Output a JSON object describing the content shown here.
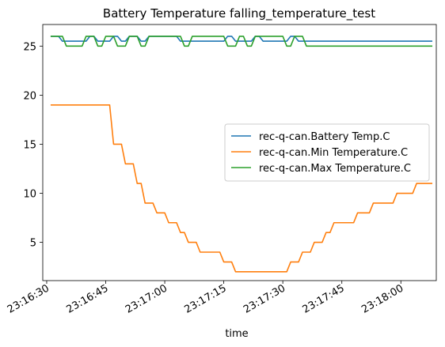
{
  "chart_data": {
    "type": "line",
    "title": "Battery Temperature falling_temperature_test",
    "xlabel": "time",
    "ylabel": "",
    "x_axis_type": "time",
    "xlim": [
      "23:16:29",
      "23:18:09"
    ],
    "ylim": [
      1.1,
      27.2
    ],
    "x_ticks": [
      "23:16:30",
      "23:16:45",
      "23:17:00",
      "23:17:15",
      "23:17:30",
      "23:17:45",
      "23:18:00"
    ],
    "y_ticks": [
      5,
      10,
      15,
      20,
      25
    ],
    "grid": false,
    "legend_position": "center-right",
    "series": [
      {
        "name": "rec-q-can.Battery Temp.C",
        "color": "#1f77b4",
        "points": [
          [
            "23:16:31",
            26
          ],
          [
            "23:16:33",
            26
          ],
          [
            "23:16:34",
            25.5
          ],
          [
            "23:16:35",
            25.5
          ],
          [
            "23:16:37",
            25.5
          ],
          [
            "23:16:38",
            25.5
          ],
          [
            "23:16:39",
            25.5
          ],
          [
            "23:16:40",
            25.5
          ],
          [
            "23:16:41",
            26
          ],
          [
            "23:16:42",
            26
          ],
          [
            "23:16:43",
            25.5
          ],
          [
            "23:16:46",
            25.5
          ],
          [
            "23:16:47",
            26
          ],
          [
            "23:16:48",
            26
          ],
          [
            "23:16:49",
            25.5
          ],
          [
            "23:16:50",
            25.5
          ],
          [
            "23:16:51",
            26
          ],
          [
            "23:16:53",
            26
          ],
          [
            "23:16:54",
            25.5
          ],
          [
            "23:16:55",
            25.5
          ],
          [
            "23:16:56",
            26
          ],
          [
            "23:17:03",
            26
          ],
          [
            "23:17:04",
            25.5
          ],
          [
            "23:17:15",
            25.5
          ],
          [
            "23:17:16",
            26
          ],
          [
            "23:17:17",
            26
          ],
          [
            "23:17:18",
            25.5
          ],
          [
            "23:17:22",
            25.5
          ],
          [
            "23:17:23",
            26
          ],
          [
            "23:17:24",
            26
          ],
          [
            "23:17:25",
            25.5
          ],
          [
            "23:17:31",
            25.5
          ],
          [
            "23:17:32",
            26
          ],
          [
            "23:17:33",
            26
          ],
          [
            "23:17:34",
            25.5
          ],
          [
            "23:18:08",
            25.5
          ]
        ]
      },
      {
        "name": "rec-q-can.Min Temperature.C",
        "color": "#ff7f0e",
        "points": [
          [
            "23:16:31",
            19
          ],
          [
            "23:16:46",
            19
          ],
          [
            "23:16:47",
            15
          ],
          [
            "23:16:48",
            15
          ],
          [
            "23:16:49",
            15
          ],
          [
            "23:16:50",
            13
          ],
          [
            "23:16:51",
            13
          ],
          [
            "23:16:52",
            13
          ],
          [
            "23:16:53",
            11
          ],
          [
            "23:16:54",
            11
          ],
          [
            "23:16:55",
            9
          ],
          [
            "23:16:57",
            9
          ],
          [
            "23:16:58",
            8
          ],
          [
            "23:17:00",
            8
          ],
          [
            "23:17:01",
            7
          ],
          [
            "23:17:03",
            7
          ],
          [
            "23:17:04",
            6
          ],
          [
            "23:17:05",
            6
          ],
          [
            "23:17:06",
            5
          ],
          [
            "23:17:08",
            5
          ],
          [
            "23:17:09",
            4
          ],
          [
            "23:17:14",
            4
          ],
          [
            "23:17:15",
            3
          ],
          [
            "23:17:17",
            3
          ],
          [
            "23:17:18",
            2
          ],
          [
            "23:17:31",
            2
          ],
          [
            "23:17:32",
            3
          ],
          [
            "23:17:34",
            3
          ],
          [
            "23:17:35",
            4
          ],
          [
            "23:17:37",
            4
          ],
          [
            "23:17:38",
            5
          ],
          [
            "23:17:40",
            5
          ],
          [
            "23:17:41",
            6
          ],
          [
            "23:17:42",
            6
          ],
          [
            "23:17:43",
            7
          ],
          [
            "23:17:48",
            7
          ],
          [
            "23:17:49",
            8
          ],
          [
            "23:17:52",
            8
          ],
          [
            "23:17:53",
            9
          ],
          [
            "23:17:58",
            9
          ],
          [
            "23:17:59",
            10
          ],
          [
            "23:18:03",
            10
          ],
          [
            "23:18:04",
            11
          ],
          [
            "23:18:08",
            11
          ]
        ]
      },
      {
        "name": "rec-q-can.Max Temperature.C",
        "color": "#2ca02c",
        "points": [
          [
            "23:16:31",
            26
          ],
          [
            "23:16:34",
            26
          ],
          [
            "23:16:35",
            25
          ],
          [
            "23:16:39",
            25
          ],
          [
            "23:16:40",
            26
          ],
          [
            "23:16:42",
            26
          ],
          [
            "23:16:43",
            25
          ],
          [
            "23:16:44",
            25
          ],
          [
            "23:16:45",
            26
          ],
          [
            "23:16:47",
            26
          ],
          [
            "23:16:48",
            25
          ],
          [
            "23:16:50",
            25
          ],
          [
            "23:16:51",
            26
          ],
          [
            "23:16:53",
            26
          ],
          [
            "23:16:54",
            25
          ],
          [
            "23:16:55",
            25
          ],
          [
            "23:16:56",
            26
          ],
          [
            "23:17:04",
            26
          ],
          [
            "23:17:05",
            25
          ],
          [
            "23:17:06",
            25
          ],
          [
            "23:17:07",
            26
          ],
          [
            "23:17:15",
            26
          ],
          [
            "23:17:16",
            25
          ],
          [
            "23:17:18",
            25
          ],
          [
            "23:17:19",
            26
          ],
          [
            "23:17:20",
            26
          ],
          [
            "23:17:21",
            25
          ],
          [
            "23:17:22",
            25
          ],
          [
            "23:17:23",
            26
          ],
          [
            "23:17:30",
            26
          ],
          [
            "23:17:31",
            25
          ],
          [
            "23:17:32",
            25
          ],
          [
            "23:17:33",
            26
          ],
          [
            "23:17:35",
            26
          ],
          [
            "23:17:36",
            25
          ],
          [
            "23:18:08",
            25
          ]
        ]
      }
    ]
  }
}
